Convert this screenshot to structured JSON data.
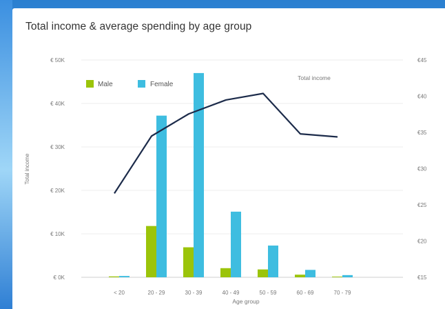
{
  "page": {
    "title": "Total income & average spending by age group"
  },
  "legend": {
    "items": [
      "Male",
      "Female"
    ]
  },
  "chart_data": {
    "type": "bar",
    "title": "Total income & average spending by age group",
    "xlabel": "Age group",
    "ylabel": "Total income",
    "categories": [
      "< 20",
      "20 - 29",
      "30 - 39",
      "40 - 49",
      "50 - 59",
      "60 - 69",
      "70 - 79"
    ],
    "ylim": [
      0,
      50000
    ],
    "y2lim": [
      15,
      45
    ],
    "y_ticks": [
      "€ 0K",
      "€ 10K",
      "€ 20K",
      "€ 30K",
      "€ 40K",
      "€ 50K"
    ],
    "y2_ticks": [
      "€15",
      "€20",
      "€25",
      "€30",
      "€35",
      "€40",
      "€45"
    ],
    "series": [
      {
        "name": "Male",
        "type": "bar",
        "color": "#9bc40a",
        "values": [
          200,
          11800,
          6900,
          2100,
          1800,
          600,
          150
        ]
      },
      {
        "name": "Female",
        "type": "bar",
        "color": "#3ebde0",
        "values": [
          300,
          37200,
          47000,
          15100,
          7300,
          1700,
          500
        ]
      },
      {
        "name": "Total income",
        "type": "line",
        "color": "#1c2b4a",
        "values": [
          19300,
          32500,
          37600,
          40800,
          42300,
          33000,
          32300
        ]
      }
    ],
    "grid": true,
    "legend_position": "top-left"
  }
}
